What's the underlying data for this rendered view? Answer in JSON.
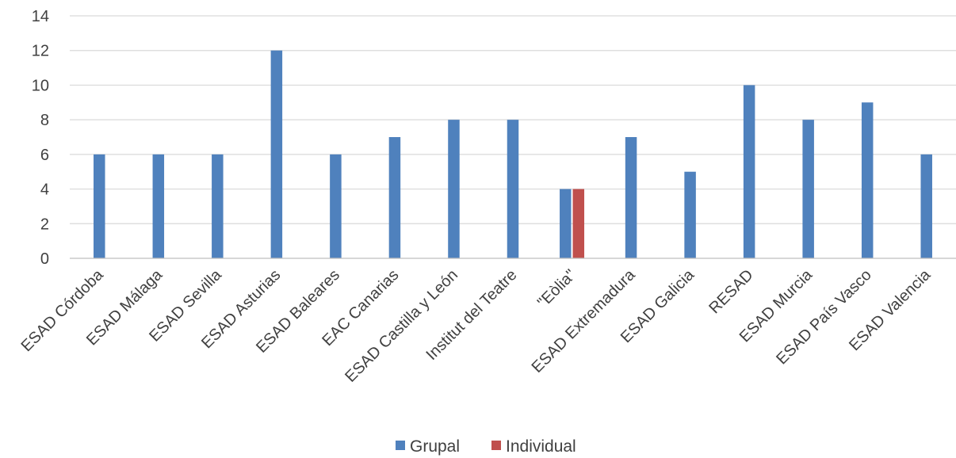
{
  "chart_data": {
    "type": "bar",
    "categories": [
      "ESAD Córdoba",
      "ESAD Málaga",
      "ESAD Sevilla",
      "ESAD Asturias",
      "ESAD Baleares",
      "EAC Canarias",
      "ESAD Castilla y León",
      "Institut del Teatre",
      "\"Eòlia\"",
      "ESAD Extremadura",
      "ESAD Galicia",
      "RESAD",
      "ESAD Murcia",
      "ESAD País Vasco",
      "ESAD Valencia"
    ],
    "series": [
      {
        "name": "Grupal",
        "color": "#4f81bd",
        "values": [
          6,
          6,
          6,
          12,
          6,
          7,
          8,
          8,
          4,
          7,
          5,
          10,
          8,
          9,
          6
        ]
      },
      {
        "name": "Individual",
        "color": "#c0504d",
        "values": [
          0,
          0,
          0,
          0,
          0,
          0,
          0,
          0,
          4,
          0,
          0,
          0,
          0,
          0,
          0
        ]
      }
    ],
    "yticks": [
      "0",
      "2",
      "4",
      "6",
      "8",
      "10",
      "12",
      "14"
    ],
    "ylim": [
      0,
      14
    ],
    "grid": true,
    "legend_position": "bottom",
    "xlabel": "",
    "ylabel": "",
    "title": ""
  }
}
